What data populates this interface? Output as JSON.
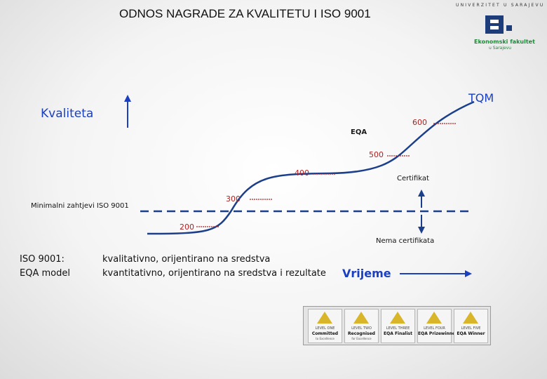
{
  "header": {
    "title": "ODNOS NAGRADE ZA KVALITETU I ISO 9001",
    "university": "UNIVERZITET U SARAJEVU",
    "faculty_line1": "Ekonomski fakultet",
    "faculty_line2": "u Sarajevu"
  },
  "diagram": {
    "y_axis_label": "Kvaliteta",
    "x_axis_label": "Vrijeme",
    "curve_end_label": "TQM",
    "levels": [
      "200",
      "300",
      "400",
      "500",
      "600"
    ],
    "eqa_label": "EQA",
    "threshold_label": "Minimalni zahtjevi ISO 9001",
    "above_threshold": "Certifikat",
    "below_threshold": "Nema certifikata",
    "curve_color": "#1a3fc0",
    "level_color": "#b02020"
  },
  "legend": [
    {
      "key": "ISO 9001:",
      "value": "kvalitativno, orijentirano na sredstva"
    },
    {
      "key": "EQA model",
      "value": "kvantitativno, orijentirano na sredstva i rezultate"
    }
  ],
  "badges": [
    {
      "level": "LEVEL ONE",
      "name": "Committed",
      "sub": "to Excellence"
    },
    {
      "level": "LEVEL TWO",
      "name": "Recognised",
      "sub": "for Excellence"
    },
    {
      "level": "LEVEL THREE",
      "name": "EQA Finalist",
      "sub": ""
    },
    {
      "level": "LEVEL FOUR",
      "name": "EQA Prizewinner",
      "sub": ""
    },
    {
      "level": "LEVEL FIVE",
      "name": "EQA Winner",
      "sub": ""
    }
  ]
}
